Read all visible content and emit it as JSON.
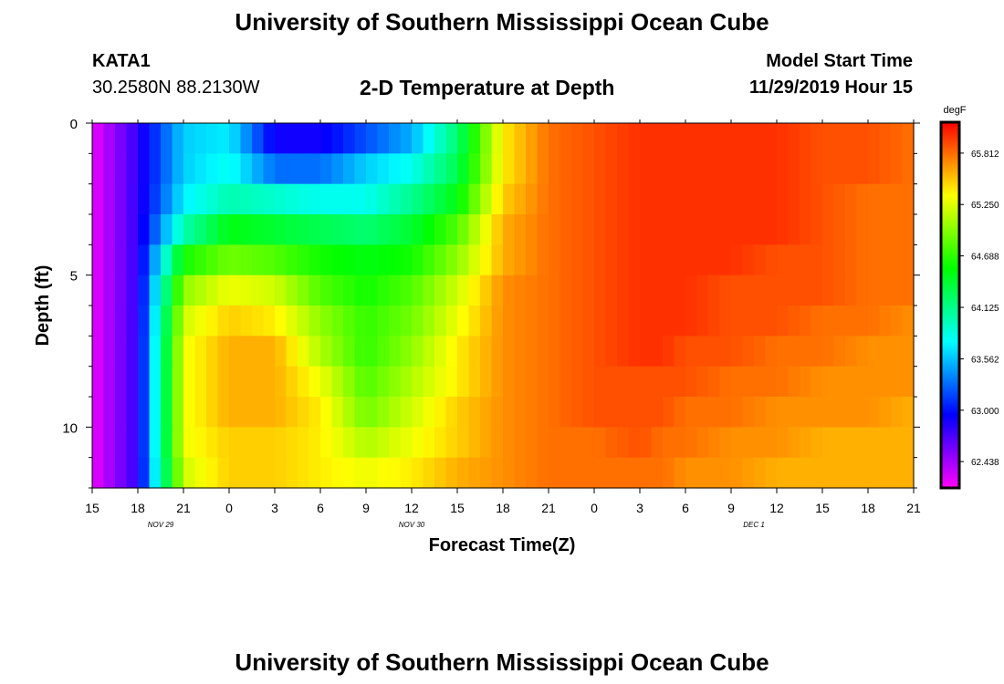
{
  "header": {
    "title_top": "University of Southern Mississippi Ocean Cube",
    "title_bottom": "University of Southern Mississippi Ocean Cube",
    "station": "KATA1",
    "coords": "30.2580N 88.2130W",
    "subtitle": "2-D Temperature at Depth",
    "model_start_label": "Model Start Time",
    "model_start_value": "11/29/2019 Hour 15"
  },
  "chart_data": {
    "type": "heatmap",
    "title": "2-D Temperature at Depth",
    "xlabel": "Forecast Time(Z)",
    "ylabel": "Depth (ft)",
    "x_tick_labels": [
      "15",
      "18",
      "21",
      "0",
      "3",
      "6",
      "9",
      "12",
      "15",
      "18",
      "21",
      "0",
      "3",
      "6",
      "9",
      "12",
      "15",
      "18",
      "21"
    ],
    "x_hours": [
      0,
      54
    ],
    "date_labels": [
      {
        "text": "NOV 29",
        "hour": 4.5
      },
      {
        "text": "NOV 30",
        "hour": 21
      },
      {
        "text": "DEC 1",
        "hour": 43.5
      }
    ],
    "y_tick_labels": [
      "0",
      "5",
      "10"
    ],
    "y_ticks": [
      0,
      5,
      10
    ],
    "ylim": [
      0,
      12
    ],
    "colorbar": {
      "unit": "degF",
      "labels": [
        "65.812",
        "65.250",
        "64.688",
        "64.125",
        "63.562",
        "63.000",
        "62.438"
      ],
      "values": [
        65.812,
        65.25,
        64.688,
        64.125,
        63.562,
        63.0,
        62.438
      ],
      "range": [
        62.15,
        66.15
      ]
    },
    "depths": [
      0.5,
      1.5,
      2.5,
      3.5,
      4.5,
      5.5,
      6.5,
      7.5,
      8.5,
      9.5,
      10.5,
      11.5
    ],
    "time_hours": [
      0,
      1.5,
      3,
      6,
      9,
      12,
      15,
      18,
      21,
      24,
      27,
      30,
      33,
      36,
      37.5,
      39,
      42,
      45,
      48,
      51,
      54
    ],
    "values": [
      [
        62.2,
        62.5,
        62.8,
        63.6,
        63.7,
        62.9,
        62.9,
        63.2,
        63.5,
        64.2,
        65.4,
        65.8,
        65.9,
        66.0,
        66.0,
        66.0,
        66.0,
        66.0,
        65.9,
        65.9,
        65.8
      ],
      [
        62.2,
        62.5,
        62.8,
        63.6,
        63.8,
        63.3,
        63.3,
        63.6,
        63.8,
        64.3,
        65.4,
        65.8,
        65.9,
        66.0,
        66.0,
        66.0,
        66.0,
        66.0,
        65.9,
        65.9,
        65.8
      ],
      [
        62.2,
        62.5,
        62.8,
        63.7,
        64.0,
        63.9,
        63.8,
        63.8,
        64.1,
        64.5,
        65.5,
        65.8,
        65.9,
        66.0,
        66.0,
        66.0,
        66.0,
        66.0,
        65.9,
        65.8,
        65.8
      ],
      [
        62.2,
        62.5,
        62.8,
        64.0,
        64.5,
        64.4,
        64.3,
        64.2,
        64.4,
        64.8,
        65.6,
        65.8,
        65.9,
        66.0,
        66.0,
        66.0,
        66.0,
        66.0,
        65.9,
        65.8,
        65.8
      ],
      [
        62.2,
        62.5,
        62.8,
        64.6,
        64.9,
        64.8,
        64.6,
        64.5,
        64.6,
        65.0,
        65.6,
        65.8,
        65.9,
        66.0,
        66.0,
        66.0,
        66.0,
        65.9,
        65.9,
        65.8,
        65.8
      ],
      [
        62.2,
        62.5,
        62.8,
        65.0,
        65.3,
        65.2,
        64.8,
        64.6,
        64.8,
        65.2,
        65.7,
        65.8,
        65.9,
        66.0,
        66.0,
        66.0,
        65.9,
        65.9,
        65.9,
        65.8,
        65.8
      ],
      [
        62.2,
        62.5,
        62.8,
        65.2,
        65.5,
        65.4,
        65.0,
        64.7,
        64.9,
        65.3,
        65.7,
        65.8,
        65.9,
        66.0,
        66.0,
        66.0,
        65.9,
        65.9,
        65.8,
        65.8,
        65.7
      ],
      [
        62.2,
        62.5,
        62.8,
        65.3,
        65.6,
        65.6,
        65.1,
        64.7,
        65.0,
        65.4,
        65.7,
        65.8,
        65.9,
        66.0,
        66.0,
        65.9,
        65.9,
        65.8,
        65.8,
        65.7,
        65.7
      ],
      [
        62.2,
        62.5,
        62.8,
        65.3,
        65.6,
        65.6,
        65.3,
        64.8,
        65.1,
        65.4,
        65.7,
        65.8,
        65.9,
        65.9,
        65.9,
        65.9,
        65.8,
        65.8,
        65.7,
        65.7,
        65.7
      ],
      [
        62.2,
        62.5,
        62.8,
        65.3,
        65.6,
        65.6,
        65.4,
        64.9,
        65.2,
        65.5,
        65.7,
        65.8,
        65.9,
        65.9,
        65.9,
        65.8,
        65.8,
        65.7,
        65.7,
        65.7,
        65.6
      ],
      [
        62.2,
        62.5,
        62.8,
        65.3,
        65.5,
        65.5,
        65.4,
        65.1,
        65.3,
        65.5,
        65.7,
        65.8,
        65.8,
        65.9,
        65.8,
        65.8,
        65.7,
        65.7,
        65.6,
        65.6,
        65.6
      ],
      [
        62.2,
        62.5,
        62.8,
        65.2,
        65.5,
        65.5,
        65.4,
        65.3,
        65.4,
        65.6,
        65.7,
        65.8,
        65.8,
        65.8,
        65.8,
        65.7,
        65.7,
        65.6,
        65.6,
        65.6,
        65.6
      ]
    ]
  }
}
